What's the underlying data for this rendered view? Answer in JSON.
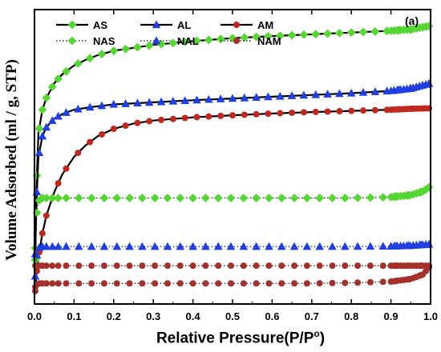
{
  "chart_data": {
    "type": "line",
    "panel_label": "(a)",
    "xlabel_main": "Relative Pressure(P/P",
    "xlabel_sup": "o",
    "xlabel_close": ")",
    "ylabel": "Volume Adsorbed (ml / g, STP)",
    "xlim": [
      0.0,
      1.0
    ],
    "ylim": [
      0,
      100
    ],
    "x_ticks": [
      "0.0",
      "0.1",
      "0.2",
      "0.3",
      "0.4",
      "0.5",
      "0.6",
      "0.7",
      "0.8",
      "0.9",
      "1.0"
    ],
    "y_ticks_visible": false,
    "legend_position": "top-left",
    "series": [
      {
        "name": "AS",
        "color": "#55d633",
        "marker": "diamond",
        "style": "solid",
        "x": [
          0.0,
          0.005,
          0.01,
          0.02,
          0.03,
          0.05,
          0.07,
          0.1,
          0.13,
          0.16,
          0.2,
          0.25,
          0.3,
          0.4,
          0.5,
          0.6,
          0.7,
          0.8,
          0.9,
          0.95,
          1.0
        ],
        "y": [
          5,
          40,
          58,
          66,
          70,
          75,
          78,
          81,
          83,
          84.5,
          86,
          87,
          88,
          89.3,
          90.3,
          91,
          91.6,
          92.2,
          92.8,
          93.3,
          94.5
        ]
      },
      {
        "name": "AL",
        "color": "#1f3fe0",
        "marker": "triangle",
        "style": "solid",
        "x": [
          0.0,
          0.005,
          0.01,
          0.02,
          0.03,
          0.05,
          0.07,
          0.1,
          0.15,
          0.2,
          0.3,
          0.4,
          0.5,
          0.6,
          0.7,
          0.8,
          0.9,
          0.95,
          1.0
        ],
        "y": [
          5,
          35,
          50,
          57,
          60,
          63,
          64.5,
          66,
          67,
          67.8,
          68.5,
          69.2,
          69.8,
          70.4,
          71,
          71.6,
          72.4,
          73.2,
          75
        ]
      },
      {
        "name": "AM",
        "color": "#c0281f",
        "marker": "circle",
        "style": "solid",
        "x": [
          0.0,
          0.005,
          0.01,
          0.02,
          0.03,
          0.05,
          0.07,
          0.1,
          0.13,
          0.16,
          0.2,
          0.25,
          0.3,
          0.4,
          0.5,
          0.6,
          0.7,
          0.8,
          0.9,
          0.95,
          1.0
        ],
        "y": [
          3,
          10,
          16,
          24,
          30,
          38,
          44,
          50,
          54,
          57,
          59.5,
          61.3,
          62.3,
          63.4,
          64.1,
          64.7,
          65.2,
          65.6,
          66,
          66.3,
          66.5
        ]
      },
      {
        "name": "NAS",
        "color": "#55d633",
        "marker": "diamond",
        "style": "dotted",
        "x": [
          0.0,
          0.005,
          0.01,
          0.02,
          0.05,
          0.1,
          0.2,
          0.3,
          0.4,
          0.5,
          0.6,
          0.7,
          0.8,
          0.9,
          0.95,
          0.98,
          1.0
        ],
        "y": [
          5,
          30,
          35,
          36,
          36,
          36,
          36,
          36,
          36,
          36,
          36,
          36,
          36,
          36.3,
          37,
          38.2,
          40
        ]
      },
      {
        "name": "NAL",
        "color": "#1f3fe0",
        "marker": "triangle",
        "style": "dotted",
        "x": [
          0.0,
          0.005,
          0.01,
          0.02,
          0.05,
          0.1,
          0.2,
          0.3,
          0.4,
          0.5,
          0.6,
          0.7,
          0.8,
          0.9,
          0.95,
          1.0
        ],
        "y": [
          5,
          16,
          19,
          19.5,
          19.5,
          19.5,
          19.5,
          19.5,
          19.5,
          19.5,
          19.5,
          19.5,
          19.5,
          19.6,
          19.8,
          20.3
        ]
      },
      {
        "name": "NAM",
        "color": "#a3312a",
        "marker": "circle",
        "style": "dotted",
        "x": [
          0.0,
          0.005,
          0.01,
          0.02,
          0.05,
          0.1,
          0.2,
          0.3,
          0.4,
          0.5,
          0.6,
          0.7,
          0.8,
          0.9,
          0.95,
          0.98,
          1.0
        ],
        "y": [
          3,
          6.5,
          7,
          7,
          7,
          7,
          7,
          7,
          7,
          7,
          7,
          7,
          7.2,
          7.6,
          8.5,
          10,
          13
        ]
      },
      {
        "name": "NAM",
        "color": "#a3312a",
        "marker": "circle",
        "style": "dotted",
        "x": [
          0.0,
          0.05,
          0.1,
          0.2,
          0.3,
          0.4,
          0.5,
          0.6,
          0.7,
          0.8,
          0.9,
          0.95,
          1.0
        ],
        "y": [
          13,
          13,
          13,
          13,
          13,
          13,
          13,
          13,
          13,
          13,
          13,
          13,
          13
        ]
      }
    ]
  }
}
